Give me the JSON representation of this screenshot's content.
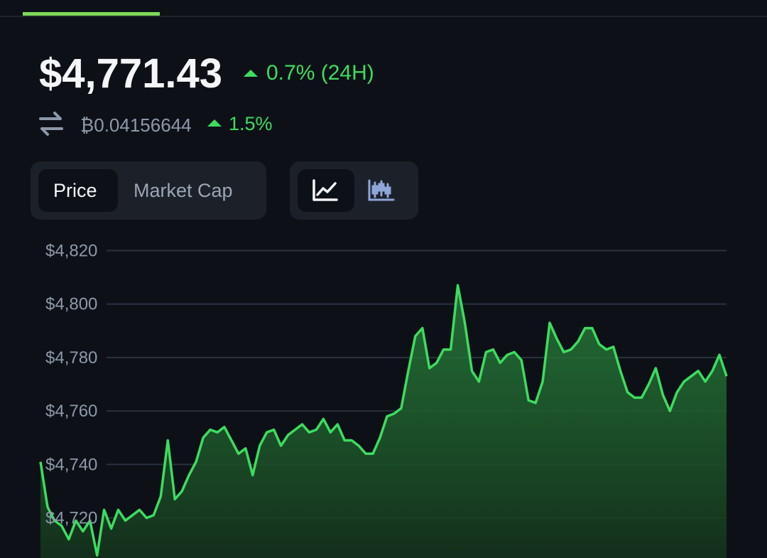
{
  "header": {
    "price": "$4,771.43",
    "change_24h": "0.7% (24H)",
    "btc_price": "₿0.04156644",
    "btc_change": "1.5%"
  },
  "tabs": {
    "metric": [
      "Price",
      "Market Cap"
    ]
  },
  "chart": {
    "type": "line",
    "color": "#3ddc60",
    "ylim": [
      4705,
      4822
    ],
    "yticks": [
      {
        "value": 4820,
        "label": "$4,820"
      },
      {
        "value": 4800,
        "label": "$4,800"
      },
      {
        "value": 4780,
        "label": "$4,780"
      },
      {
        "value": 4760,
        "label": "$4,760"
      },
      {
        "value": 4740,
        "label": "$4,740"
      },
      {
        "value": 4720,
        "label": "$4,720"
      }
    ],
    "values": [
      4741,
      4724,
      4719,
      4717,
      4712,
      4719,
      4715,
      4719,
      4706,
      4723,
      4716,
      4723,
      4719,
      4721,
      4723,
      4720,
      4721,
      4728,
      4749,
      4727,
      4730,
      4736,
      4741,
      4750,
      4753,
      4752,
      4754,
      4749,
      4744,
      4746,
      4736,
      4747,
      4752,
      4753,
      4747,
      4751,
      4753,
      4755,
      4752,
      4753,
      4757,
      4752,
      4755,
      4749,
      4749,
      4747,
      4744,
      4744,
      4750,
      4758,
      4759,
      4761,
      4775,
      4788,
      4791,
      4776,
      4778,
      4783,
      4783,
      4807,
      4793,
      4775,
      4771,
      4782,
      4783,
      4778,
      4781,
      4782,
      4779,
      4764,
      4763,
      4771,
      4793,
      4787,
      4782,
      4783,
      4786,
      4791,
      4791,
      4785,
      4783,
      4784,
      4775,
      4767,
      4765,
      4765,
      4770,
      4776,
      4766,
      4760,
      4767,
      4771,
      4773,
      4775,
      4771,
      4775,
      4781,
      4773
    ]
  }
}
